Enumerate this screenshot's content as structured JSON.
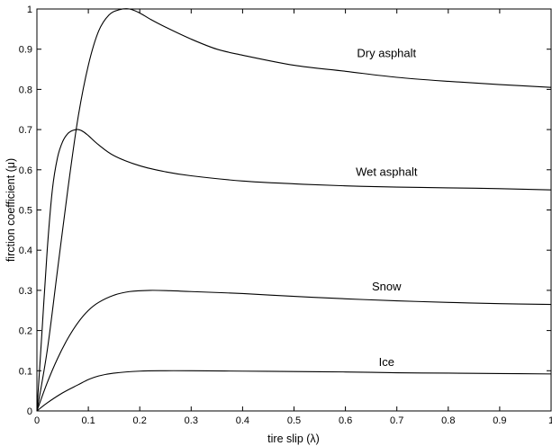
{
  "chart_data": {
    "type": "line",
    "title": "",
    "xlabel": "tire slip (λ)",
    "ylabel": "firction coefficient (μ)",
    "xlim": [
      0,
      1
    ],
    "ylim": [
      0,
      1
    ],
    "xticks": [
      "0",
      "0.1",
      "0.2",
      "0.3",
      "0.4",
      "0.5",
      "0.6",
      "0.7",
      "0.8",
      "0.9",
      "1"
    ],
    "yticks": [
      "0",
      "0.1",
      "0.2",
      "0.3",
      "0.4",
      "0.5",
      "0.6",
      "0.7",
      "0.8",
      "0.9",
      "1"
    ],
    "grid": false,
    "legend": "none",
    "line_color": "#000000",
    "series": [
      {
        "name": "Dry asphalt",
        "x": [
          0,
          0.02,
          0.04,
          0.06,
          0.08,
          0.1,
          0.12,
          0.14,
          0.16,
          0.18,
          0.2,
          0.22,
          0.25,
          0.3,
          0.35,
          0.4,
          0.5,
          0.6,
          0.7,
          0.8,
          0.9,
          1.0
        ],
        "y": [
          0,
          0.15,
          0.35,
          0.55,
          0.73,
          0.86,
          0.945,
          0.985,
          0.998,
          1.0,
          0.99,
          0.975,
          0.955,
          0.925,
          0.9,
          0.885,
          0.86,
          0.845,
          0.83,
          0.82,
          0.812,
          0.805
        ]
      },
      {
        "name": "Wet asphalt",
        "x": [
          0,
          0.01,
          0.02,
          0.03,
          0.04,
          0.05,
          0.06,
          0.07,
          0.08,
          0.09,
          0.1,
          0.12,
          0.15,
          0.2,
          0.25,
          0.3,
          0.4,
          0.5,
          0.6,
          0.7,
          0.8,
          0.9,
          1.0
        ],
        "y": [
          0,
          0.2,
          0.4,
          0.55,
          0.63,
          0.67,
          0.69,
          0.698,
          0.7,
          0.695,
          0.685,
          0.662,
          0.635,
          0.61,
          0.595,
          0.585,
          0.572,
          0.565,
          0.56,
          0.557,
          0.555,
          0.553,
          0.55
        ]
      },
      {
        "name": "Snow",
        "x": [
          0,
          0.02,
          0.04,
          0.06,
          0.08,
          0.1,
          0.12,
          0.15,
          0.18,
          0.22,
          0.26,
          0.3,
          0.4,
          0.5,
          0.6,
          0.7,
          0.8,
          0.9,
          1.0
        ],
        "y": [
          0,
          0.07,
          0.13,
          0.18,
          0.22,
          0.25,
          0.27,
          0.288,
          0.297,
          0.3,
          0.299,
          0.297,
          0.292,
          0.285,
          0.279,
          0.274,
          0.27,
          0.267,
          0.265
        ]
      },
      {
        "name": "Ice",
        "x": [
          0,
          0.02,
          0.05,
          0.08,
          0.1,
          0.12,
          0.15,
          0.2,
          0.25,
          0.3,
          0.4,
          0.5,
          0.6,
          0.7,
          0.8,
          0.9,
          1.0
        ],
        "y": [
          0,
          0.02,
          0.045,
          0.065,
          0.078,
          0.087,
          0.094,
          0.099,
          0.1,
          0.1,
          0.099,
          0.098,
          0.097,
          0.095,
          0.094,
          0.093,
          0.092
        ]
      }
    ],
    "annotations": [
      {
        "text": "Dry asphalt",
        "x": 0.68,
        "y": 0.88
      },
      {
        "text": "Wet asphalt",
        "x": 0.68,
        "y": 0.585
      },
      {
        "text": "Snow",
        "x": 0.68,
        "y": 0.3
      },
      {
        "text": "Ice",
        "x": 0.68,
        "y": 0.112
      }
    ]
  }
}
